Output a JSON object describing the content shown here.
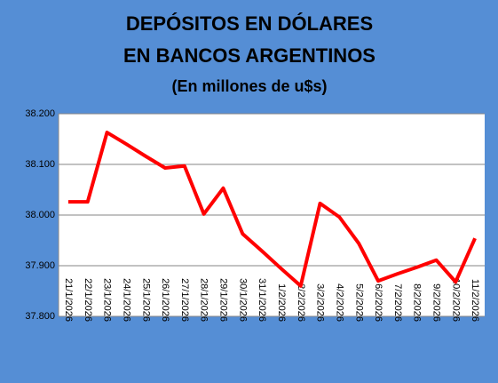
{
  "chart_data": {
    "type": "line",
    "title": [
      "DEPÓSITOS EN DÓLARES",
      "EN BANCOS ARGENTINOS"
    ],
    "subtitle": "(En millones de u$s)",
    "categories": [
      "21/1/2026",
      "22/1/2026",
      "23/1/2026",
      "24/1/2026",
      "25/1/2026",
      "26/1/2026",
      "27/1/2026",
      "28/1/2026",
      "29/1/2026",
      "30/1/2026",
      "31/1/2026",
      "1/2/2026",
      "2/2/2026",
      "3/2/2026",
      "4/2/2026",
      "5/2/2026",
      "6/2/2026",
      "7/2/2026",
      "8/2/2026",
      "9/2/2026",
      "10/2/2026",
      "11/2/2026"
    ],
    "series": [
      {
        "color": "#ff0000",
        "values": [
          38026,
          38026,
          38163,
          38140,
          38116,
          38093,
          38097,
          38002,
          38053,
          37963,
          37929,
          37894,
          37860,
          38023,
          37996,
          37944,
          37870,
          37884,
          37897,
          37911,
          37868,
          37954
        ]
      }
    ],
    "ylim": [
      37800,
      38200
    ],
    "yticks": [
      {
        "value": 37800,
        "label": "37.800"
      },
      {
        "value": 37900,
        "label": "37.900"
      },
      {
        "value": 38000,
        "label": "38.000"
      },
      {
        "value": 38100,
        "label": "38.100"
      },
      {
        "value": 38200,
        "label": "38.200"
      }
    ],
    "grid": true
  }
}
